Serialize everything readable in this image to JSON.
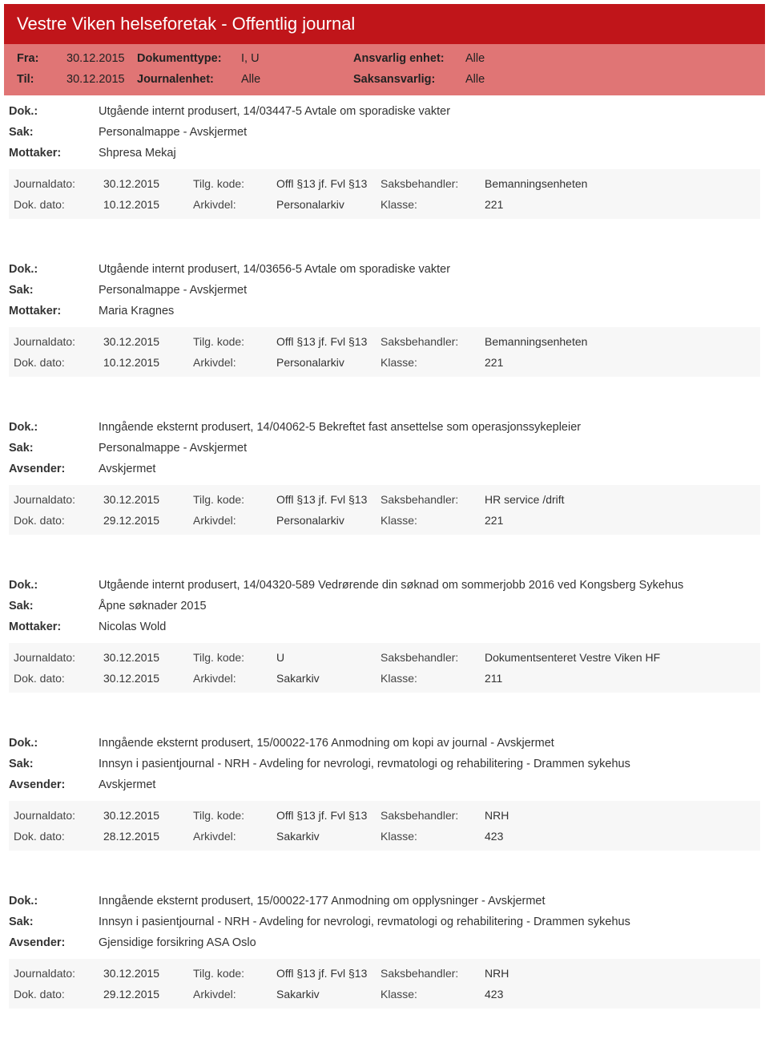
{
  "header": {
    "title": "Vestre Viken helseforetak - Offentlig journal",
    "fra_label": "Fra:",
    "fra_value": "30.12.2015",
    "til_label": "Til:",
    "til_value": "30.12.2015",
    "doktype_label": "Dokumenttype:",
    "doktype_value": "I, U",
    "journalenhet_label": "Journalenhet:",
    "journalenhet_value": "Alle",
    "ansvarlig_label": "Ansvarlig enhet:",
    "ansvarlig_value": "Alle",
    "saksansvarlig_label": "Saksansvarlig:",
    "saksansvarlig_value": "Alle"
  },
  "entries": [
    {
      "dok_label": "Dok.:",
      "dok_value": "Utgående internt produsert, 14/03447-5 Avtale om sporadiske vakter",
      "sak_label": "Sak:",
      "sak_value": "Personalmappe - Avskjermet",
      "party_label": "Mottaker:",
      "party_value": "Shpresa Mekaj",
      "journaldato_label": "Journaldato:",
      "journaldato_value": "30.12.2015",
      "tilgkode_label": "Tilg. kode:",
      "tilgkode_value": "Offl §13 jf. Fvl §13",
      "saksbeh_label": "Saksbehandler:",
      "saksbeh_value": "Bemanningsenheten",
      "dokdato_label": "Dok. dato:",
      "dokdato_value": "10.12.2015",
      "arkivdel_label": "Arkivdel:",
      "arkivdel_value": "Personalarkiv",
      "klasse_label": "Klasse:",
      "klasse_value": "221"
    },
    {
      "dok_label": "Dok.:",
      "dok_value": "Utgående internt produsert, 14/03656-5 Avtale om sporadiske vakter",
      "sak_label": "Sak:",
      "sak_value": "Personalmappe - Avskjermet",
      "party_label": "Mottaker:",
      "party_value": "Maria Kragnes",
      "journaldato_label": "Journaldato:",
      "journaldato_value": "30.12.2015",
      "tilgkode_label": "Tilg. kode:",
      "tilgkode_value": "Offl §13 jf. Fvl §13",
      "saksbeh_label": "Saksbehandler:",
      "saksbeh_value": "Bemanningsenheten",
      "dokdato_label": "Dok. dato:",
      "dokdato_value": "10.12.2015",
      "arkivdel_label": "Arkivdel:",
      "arkivdel_value": "Personalarkiv",
      "klasse_label": "Klasse:",
      "klasse_value": "221"
    },
    {
      "dok_label": "Dok.:",
      "dok_value": "Inngående eksternt produsert, 14/04062-5 Bekreftet fast ansettelse som operasjonssykepleier",
      "sak_label": "Sak:",
      "sak_value": "Personalmappe - Avskjermet",
      "party_label": "Avsender:",
      "party_value": "Avskjermet",
      "journaldato_label": "Journaldato:",
      "journaldato_value": "30.12.2015",
      "tilgkode_label": "Tilg. kode:",
      "tilgkode_value": "Offl §13 jf. Fvl §13",
      "saksbeh_label": "Saksbehandler:",
      "saksbeh_value": "HR service /drift",
      "dokdato_label": "Dok. dato:",
      "dokdato_value": "29.12.2015",
      "arkivdel_label": "Arkivdel:",
      "arkivdel_value": "Personalarkiv",
      "klasse_label": "Klasse:",
      "klasse_value": "221"
    },
    {
      "dok_label": "Dok.:",
      "dok_value": "Utgående internt produsert, 14/04320-589 Vedrørende din søknad om sommerjobb 2016 ved Kongsberg Sykehus",
      "sak_label": "Sak:",
      "sak_value": "Åpne søknader 2015",
      "party_label": "Mottaker:",
      "party_value": "Nicolas Wold",
      "journaldato_label": "Journaldato:",
      "journaldato_value": "30.12.2015",
      "tilgkode_label": "Tilg. kode:",
      "tilgkode_value": "U",
      "saksbeh_label": "Saksbehandler:",
      "saksbeh_value": "Dokumentsenteret Vestre Viken HF",
      "dokdato_label": "Dok. dato:",
      "dokdato_value": "30.12.2015",
      "arkivdel_label": "Arkivdel:",
      "arkivdel_value": "Sakarkiv",
      "klasse_label": "Klasse:",
      "klasse_value": "211"
    },
    {
      "dok_label": "Dok.:",
      "dok_value": "Inngående eksternt produsert, 15/00022-176 Anmodning om kopi av journal - Avskjermet",
      "sak_label": "Sak:",
      "sak_value": "Innsyn i pasientjournal - NRH - Avdeling for nevrologi, revmatologi og rehabilitering - Drammen sykehus",
      "party_label": "Avsender:",
      "party_value": "Avskjermet",
      "journaldato_label": "Journaldato:",
      "journaldato_value": "30.12.2015",
      "tilgkode_label": "Tilg. kode:",
      "tilgkode_value": "Offl §13 jf. Fvl §13",
      "saksbeh_label": "Saksbehandler:",
      "saksbeh_value": "NRH",
      "dokdato_label": "Dok. dato:",
      "dokdato_value": "28.12.2015",
      "arkivdel_label": "Arkivdel:",
      "arkivdel_value": "Sakarkiv",
      "klasse_label": "Klasse:",
      "klasse_value": "423"
    },
    {
      "dok_label": "Dok.:",
      "dok_value": "Inngående eksternt produsert, 15/00022-177 Anmodning om opplysninger - Avskjermet",
      "sak_label": "Sak:",
      "sak_value": "Innsyn i pasientjournal - NRH - Avdeling for nevrologi, revmatologi og rehabilitering - Drammen sykehus",
      "party_label": "Avsender:",
      "party_value": "Gjensidige forsikring ASA  Oslo",
      "journaldato_label": "Journaldato:",
      "journaldato_value": "30.12.2015",
      "tilgkode_label": "Tilg. kode:",
      "tilgkode_value": "Offl §13 jf. Fvl §13",
      "saksbeh_label": "Saksbehandler:",
      "saksbeh_value": "NRH",
      "dokdato_label": "Dok. dato:",
      "dokdato_value": "29.12.2015",
      "arkivdel_label": "Arkivdel:",
      "arkivdel_value": "Sakarkiv",
      "klasse_label": "Klasse:",
      "klasse_value": "423"
    }
  ]
}
